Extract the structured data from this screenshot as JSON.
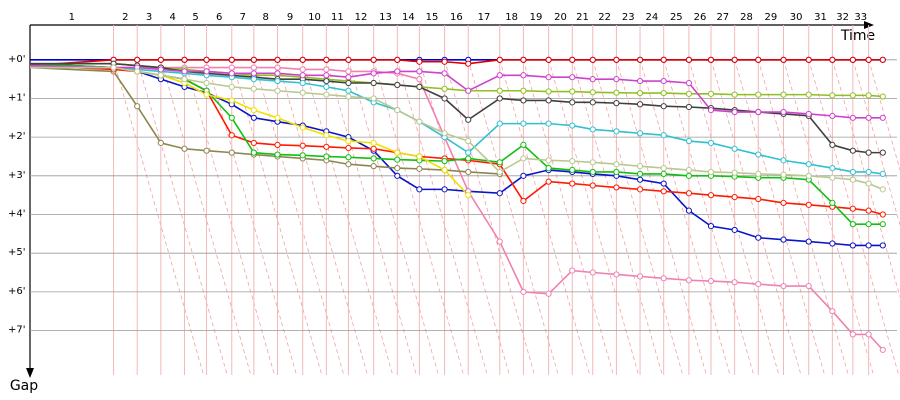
{
  "chart_data": {
    "type": "line",
    "x_label": "Time",
    "y_label": "Gap",
    "x": [
      0,
      5.3,
      6.8,
      8.3,
      9.8,
      11.2,
      12.8,
      14.2,
      15.7,
      17.3,
      18.8,
      20.2,
      21.8,
      23.3,
      24.7,
      26.3,
      27.8,
      29.8,
      31.3,
      32.9,
      34.4,
      35.7,
      37.2,
      38.7,
      40.2,
      41.8,
      43.2,
      44.7,
      46.2,
      47.8,
      49.4,
      50.9,
      52.2,
      53.2,
      54.1
    ],
    "xlim": [
      0,
      55
    ],
    "xticks": [
      {
        "value": 5.3,
        "label": "1"
      },
      {
        "value": 6.8,
        "label": "2"
      },
      {
        "value": 8.3,
        "label": "3"
      },
      {
        "value": 9.8,
        "label": "4"
      },
      {
        "value": 11.2,
        "label": "5"
      },
      {
        "value": 12.8,
        "label": "6"
      },
      {
        "value": 14.2,
        "label": "7"
      },
      {
        "value": 15.7,
        "label": "8"
      },
      {
        "value": 17.3,
        "label": "9"
      },
      {
        "value": 18.8,
        "label": "10"
      },
      {
        "value": 20.2,
        "label": "11"
      },
      {
        "value": 21.8,
        "label": "12"
      },
      {
        "value": 23.3,
        "label": "13"
      },
      {
        "value": 24.7,
        "label": "14"
      },
      {
        "value": 26.3,
        "label": "15"
      },
      {
        "value": 27.8,
        "label": "16"
      },
      {
        "value": 29.8,
        "label": "17"
      },
      {
        "value": 31.3,
        "label": "18"
      },
      {
        "value": 32.9,
        "label": "19"
      },
      {
        "value": 34.4,
        "label": "20"
      },
      {
        "value": 35.7,
        "label": "21"
      },
      {
        "value": 37.2,
        "label": "22"
      },
      {
        "value": 38.7,
        "label": "23"
      },
      {
        "value": 40.2,
        "label": "24"
      },
      {
        "value": 41.8,
        "label": "25"
      },
      {
        "value": 43.2,
        "label": "26"
      },
      {
        "value": 44.7,
        "label": "27"
      },
      {
        "value": 46.2,
        "label": "28"
      },
      {
        "value": 47.8,
        "label": "29"
      },
      {
        "value": 49.4,
        "label": "30"
      },
      {
        "value": 50.9,
        "label": "31"
      },
      {
        "value": 52.2,
        "label": "32"
      },
      {
        "value": 53.2,
        "label": "33"
      }
    ],
    "ylim": [
      -0.9,
      8.15
    ],
    "yticks": [
      {
        "value": 0,
        "label": "+0'"
      },
      {
        "value": 1,
        "label": "+1'"
      },
      {
        "value": 2,
        "label": "+2'"
      },
      {
        "value": 3,
        "label": "+3'"
      },
      {
        "value": 4,
        "label": "+4'"
      },
      {
        "value": 5,
        "label": "+5'"
      },
      {
        "value": 6,
        "label": "+6'"
      },
      {
        "value": 7,
        "label": "+7'"
      }
    ],
    "grid": true,
    "series": [
      {
        "color": "#0000cc",
        "values": [
          0,
          0,
          0,
          0,
          0,
          0,
          0,
          0,
          0,
          0,
          0,
          0,
          0,
          0,
          0,
          0,
          0,
          0,
          0,
          0,
          0,
          0,
          0,
          0,
          0,
          0,
          0,
          0,
          0,
          0,
          0,
          0,
          0,
          0,
          0
        ]
      },
      {
        "color": "#e00000",
        "values": [
          0.15,
          0,
          0,
          0,
          0,
          0,
          0,
          0,
          0,
          0,
          0,
          0,
          0,
          0,
          0.05,
          0.05,
          0.1,
          0,
          0,
          0,
          0,
          0,
          0,
          0,
          0,
          0,
          0,
          0,
          0,
          0,
          0,
          0,
          0,
          0,
          0
        ]
      },
      {
        "color": "#0a14c8",
        "values": [
          0.1,
          0.2,
          0.3,
          0.5,
          0.7,
          0.85,
          1.15,
          1.5,
          1.6,
          1.7,
          1.85,
          2.0,
          2.35,
          3.0,
          3.35,
          3.35,
          3.4,
          3.45,
          3.0,
          2.85,
          2.9,
          2.95,
          3.0,
          3.1,
          3.2,
          3.9,
          4.3,
          4.4,
          4.6,
          4.65,
          4.7,
          4.75,
          4.8,
          4.8,
          4.8
        ]
      },
      {
        "color": "#f080b0",
        "values": [
          0.2,
          0.2,
          0.2,
          0.2,
          0.2,
          0.2,
          0.2,
          0.2,
          0.2,
          0.25,
          0.25,
          0.3,
          0.3,
          0.35,
          0.5,
          2.0,
          3.4,
          4.7,
          6.0,
          6.05,
          5.45,
          5.5,
          5.55,
          5.6,
          5.65,
          5.7,
          5.72,
          5.75,
          5.8,
          5.85,
          5.85,
          6.5,
          7.1,
          7.1,
          7.5
        ]
      },
      {
        "color": "#8b8650",
        "values": [
          0.2,
          0.3,
          1.2,
          2.15,
          2.3,
          2.35,
          2.4,
          2.45,
          2.5,
          2.55,
          2.6,
          2.7,
          2.75,
          2.8,
          2.82,
          2.85,
          2.9,
          2.95,
          null,
          null,
          null,
          null,
          null,
          null,
          null,
          null,
          null,
          null,
          null,
          null,
          null,
          null,
          null,
          null,
          null
        ]
      },
      {
        "color": "#ff1a00",
        "values": [
          0.15,
          0.25,
          0.3,
          0.4,
          0.5,
          0.8,
          1.95,
          2.15,
          2.2,
          2.22,
          2.25,
          2.28,
          2.3,
          2.4,
          2.5,
          2.55,
          2.6,
          2.7,
          3.65,
          3.15,
          3.2,
          3.25,
          3.3,
          3.35,
          3.4,
          3.45,
          3.5,
          3.55,
          3.6,
          3.7,
          3.75,
          3.8,
          3.85,
          3.9,
          4.0
        ]
      },
      {
        "color": "#10c010",
        "values": [
          0.1,
          0.2,
          0.3,
          0.4,
          0.5,
          0.8,
          1.5,
          2.4,
          2.45,
          2.47,
          2.5,
          2.52,
          2.55,
          2.58,
          2.6,
          2.62,
          2.55,
          2.65,
          2.2,
          2.8,
          2.85,
          2.9,
          2.9,
          2.95,
          2.95,
          3.0,
          3.0,
          3.02,
          3.05,
          3.05,
          3.1,
          3.7,
          4.25,
          4.25,
          4.25
        ]
      },
      {
        "color": "#f0e000",
        "values": [
          0.2,
          0.2,
          0.3,
          0.4,
          0.6,
          0.9,
          1.05,
          1.3,
          1.5,
          1.75,
          1.95,
          2.1,
          2.15,
          2.4,
          2.5,
          2.85,
          3.5,
          null,
          null,
          null,
          null,
          null,
          null,
          null,
          null,
          null,
          null,
          null,
          null,
          null,
          null,
          null,
          null,
          null,
          null
        ]
      },
      {
        "color": "#90c020",
        "values": [
          0.1,
          0.1,
          0.15,
          0.2,
          0.25,
          0.3,
          0.35,
          0.4,
          0.4,
          0.45,
          0.5,
          0.55,
          0.6,
          0.65,
          0.7,
          0.75,
          0.8,
          0.8,
          0.8,
          0.82,
          0.82,
          0.84,
          0.85,
          0.86,
          0.86,
          0.88,
          0.88,
          0.9,
          0.9,
          0.9,
          0.9,
          0.92,
          0.92,
          0.92,
          0.95
        ]
      },
      {
        "color": "#404040",
        "values": [
          0.1,
          0.1,
          0.15,
          0.2,
          0.3,
          0.35,
          0.4,
          0.45,
          0.5,
          0.5,
          0.55,
          0.6,
          0.6,
          0.65,
          0.7,
          1.0,
          1.55,
          1.0,
          1.05,
          1.05,
          1.1,
          1.1,
          1.12,
          1.15,
          1.2,
          1.22,
          1.25,
          1.3,
          1.35,
          1.4,
          1.45,
          2.2,
          2.35,
          2.4,
          2.4
        ]
      },
      {
        "color": "#30c0d0",
        "values": [
          0.2,
          0.2,
          0.25,
          0.3,
          0.35,
          0.4,
          0.45,
          0.5,
          0.55,
          0.6,
          0.7,
          0.8,
          1.1,
          1.3,
          1.6,
          2.0,
          2.4,
          1.65,
          1.65,
          1.65,
          1.7,
          1.8,
          1.85,
          1.9,
          1.95,
          2.1,
          2.15,
          2.3,
          2.45,
          2.6,
          2.7,
          2.8,
          2.9,
          2.9,
          2.95
        ]
      },
      {
        "color": "#d040d0",
        "values": [
          0.15,
          0.2,
          0.2,
          0.25,
          0.3,
          0.3,
          0.35,
          0.35,
          0.35,
          0.4,
          0.4,
          0.45,
          0.35,
          0.3,
          0.3,
          0.35,
          0.8,
          0.4,
          0.4,
          0.45,
          0.45,
          0.5,
          0.5,
          0.55,
          0.55,
          0.6,
          1.3,
          1.35,
          1.35,
          1.35,
          1.4,
          1.45,
          1.5,
          1.5,
          1.5
        ]
      },
      {
        "color": "#b8c890",
        "values": [
          0.2,
          0.2,
          0.3,
          0.4,
          0.5,
          0.6,
          0.7,
          0.75,
          0.8,
          0.85,
          0.9,
          0.95,
          1.0,
          1.3,
          1.6,
          1.9,
          2.1,
          2.9,
          2.55,
          2.6,
          2.62,
          2.65,
          2.7,
          2.75,
          2.8,
          2.85,
          2.9,
          2.92,
          2.95,
          2.97,
          3.0,
          3.05,
          3.1,
          3.2,
          3.35
        ]
      }
    ]
  }
}
